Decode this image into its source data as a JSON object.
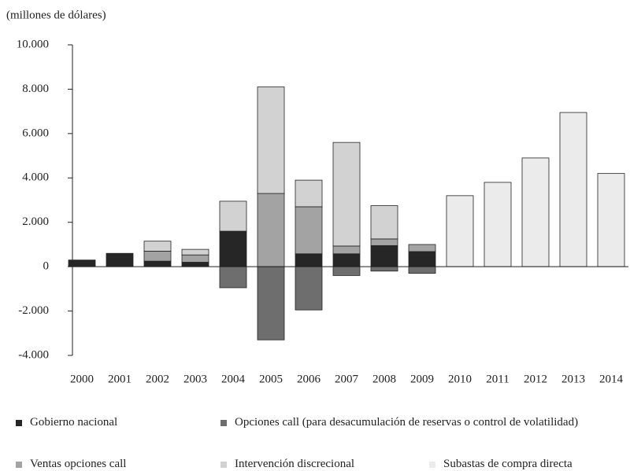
{
  "chart_data": {
    "type": "stacked_bar",
    "y_axis_label": "(millones de dólares)",
    "categories": [
      "2000",
      "2001",
      "2002",
      "2003",
      "2004",
      "2005",
      "2006",
      "2007",
      "2008",
      "2009",
      "2010",
      "2011",
      "2012",
      "2013",
      "2014"
    ],
    "series": [
      {
        "name": "Gobierno nacional",
        "color": "#262626",
        "values": [
          300,
          600,
          250,
          200,
          1600,
          0,
          580,
          580,
          950,
          680,
          0,
          0,
          0,
          0,
          0
        ]
      },
      {
        "name": "Opciones call (para desacumulación de reservas o control de volatilidad)",
        "color": "#6e6e6e",
        "values": [
          0,
          0,
          0,
          0,
          -950,
          -3300,
          -1950,
          -400,
          -200,
          -300,
          0,
          0,
          0,
          0,
          0
        ]
      },
      {
        "name": "Ventas opciones call",
        "color": "#a3a3a3",
        "values": [
          0,
          0,
          450,
          330,
          0,
          3300,
          2120,
          350,
          300,
          320,
          0,
          0,
          0,
          0,
          0
        ]
      },
      {
        "name": "Intervención discrecional",
        "color": "#d2d2d2",
        "values": [
          0,
          0,
          450,
          250,
          1350,
          4800,
          1200,
          4670,
          1500,
          0,
          0,
          0,
          0,
          0,
          0
        ]
      },
      {
        "name": "Subastas de compra directa",
        "color": "#ebebeb",
        "values": [
          0,
          0,
          0,
          0,
          0,
          0,
          0,
          0,
          0,
          0,
          3200,
          3800,
          4900,
          6950,
          4200
        ]
      }
    ],
    "ylim": [
      -4000,
      10000
    ],
    "yticks": [
      {
        "value": -4000,
        "label": "-4.000"
      },
      {
        "value": -2000,
        "label": "-2.000"
      },
      0,
      {
        "value": 2000,
        "label": "2.000"
      },
      {
        "value": 4000,
        "label": "4.000"
      },
      {
        "value": 6000,
        "label": "6.000"
      },
      {
        "value": 8000,
        "label": "8.000"
      },
      {
        "value": 10000,
        "label": "10.000"
      }
    ]
  }
}
